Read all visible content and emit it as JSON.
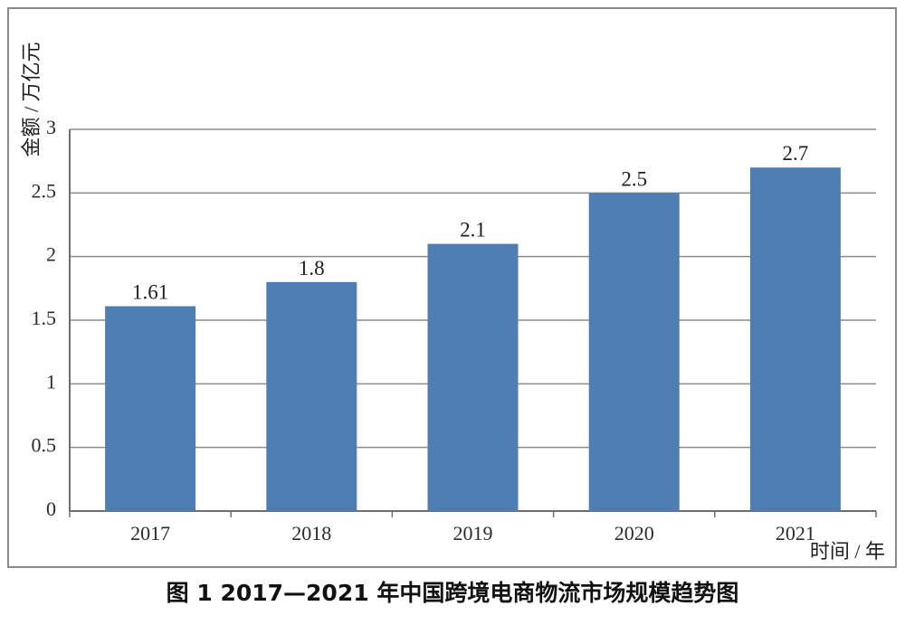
{
  "caption": "图 1   2017—2021 年中国跨境电商物流市场规模趋势图",
  "colors": {
    "bar": "#4f7eb2",
    "grid": "#8c8c8c",
    "axis": "#6e6e6e"
  },
  "chart_data": {
    "type": "bar",
    "categories": [
      "2017",
      "2018",
      "2019",
      "2020",
      "2021"
    ],
    "values": [
      1.61,
      1.8,
      2.1,
      2.5,
      2.7
    ],
    "data_labels": [
      "1.61",
      "1.8",
      "2.1",
      "2.5",
      "2.7"
    ],
    "y_ticks": [
      "0",
      "0.5",
      "1",
      "1.5",
      "2",
      "2.5",
      "3"
    ],
    "ylim": [
      0,
      3
    ],
    "xlabel": "时间 / 年",
    "ylabel": "金额 / 万亿元",
    "grid": true
  }
}
